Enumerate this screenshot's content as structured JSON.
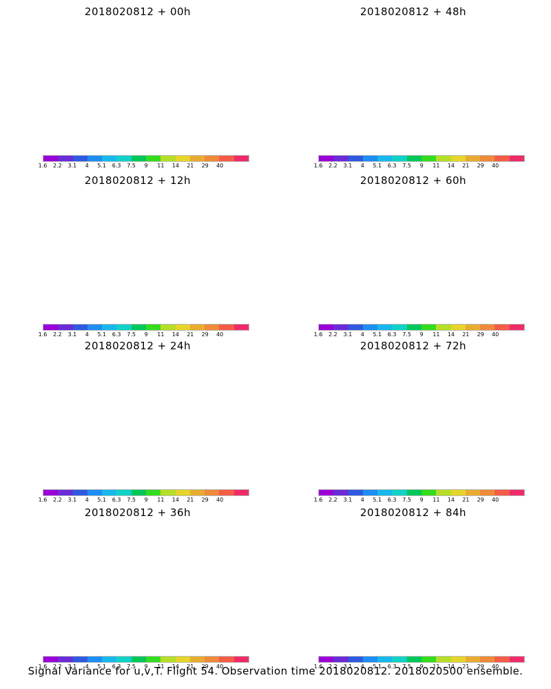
{
  "panels": [
    {
      "title": "2018020812 + 00h",
      "lead": 0
    },
    {
      "title": "2018020812 + 48h",
      "lead": 48
    },
    {
      "title": "2018020812 + 12h",
      "lead": 12
    },
    {
      "title": "2018020812 + 60h",
      "lead": 60
    },
    {
      "title": "2018020812 + 24h",
      "lead": 24
    },
    {
      "title": "2018020812 + 72h",
      "lead": 72
    },
    {
      "title": "2018020812 + 36h",
      "lead": 36
    },
    {
      "title": "2018020812 + 84h",
      "lead": 84
    }
  ],
  "colorbar": {
    "labels": [
      "1.6",
      "2.2",
      "3.1",
      "4",
      "5.1",
      "6.3",
      "7.5",
      "9",
      "11",
      "14",
      "21",
      "29",
      "40"
    ],
    "colors": [
      "#9a00d8",
      "#6a2bd8",
      "#2f5ae0",
      "#1e8ef2",
      "#18b8ee",
      "#10d2c8",
      "#00c858",
      "#34dc1e",
      "#b6de28",
      "#e6d52a",
      "#e9ac32",
      "#ee8a3a",
      "#f45c48",
      "#ef2c68"
    ]
  },
  "caption": "Signal Variance for u,v,T. Flight 54. Observation time 2018020812. 2018020500 ensemble."
}
